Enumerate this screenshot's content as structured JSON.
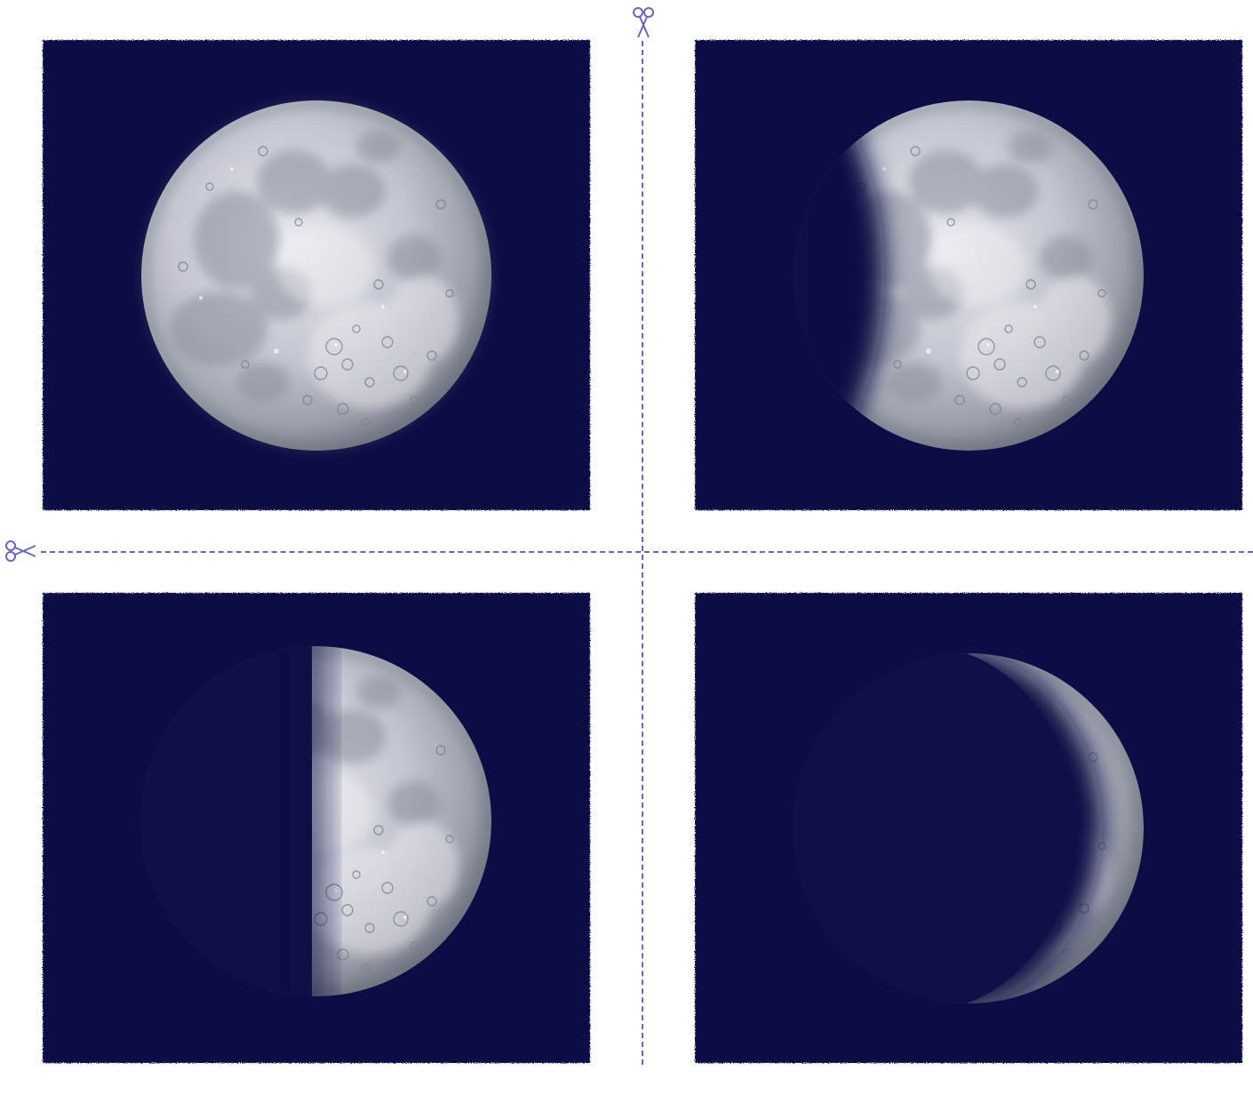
{
  "sheet": {
    "background": "#ffffff",
    "card_color": "#0e1145",
    "cut_line_color": "#6b67b8",
    "cut_line_style": "dashed",
    "icons": [
      "scissors-icon",
      "scissors-icon"
    ]
  },
  "phases": [
    {
      "illuminated_fraction": 1.0,
      "shape": "full-moon"
    },
    {
      "illuminated_fraction": 0.75,
      "shape": "waxing-gibbous"
    },
    {
      "illuminated_fraction": 0.5,
      "shape": "first-quarter"
    },
    {
      "illuminated_fraction": 0.2,
      "shape": "waxing-crescent"
    }
  ]
}
